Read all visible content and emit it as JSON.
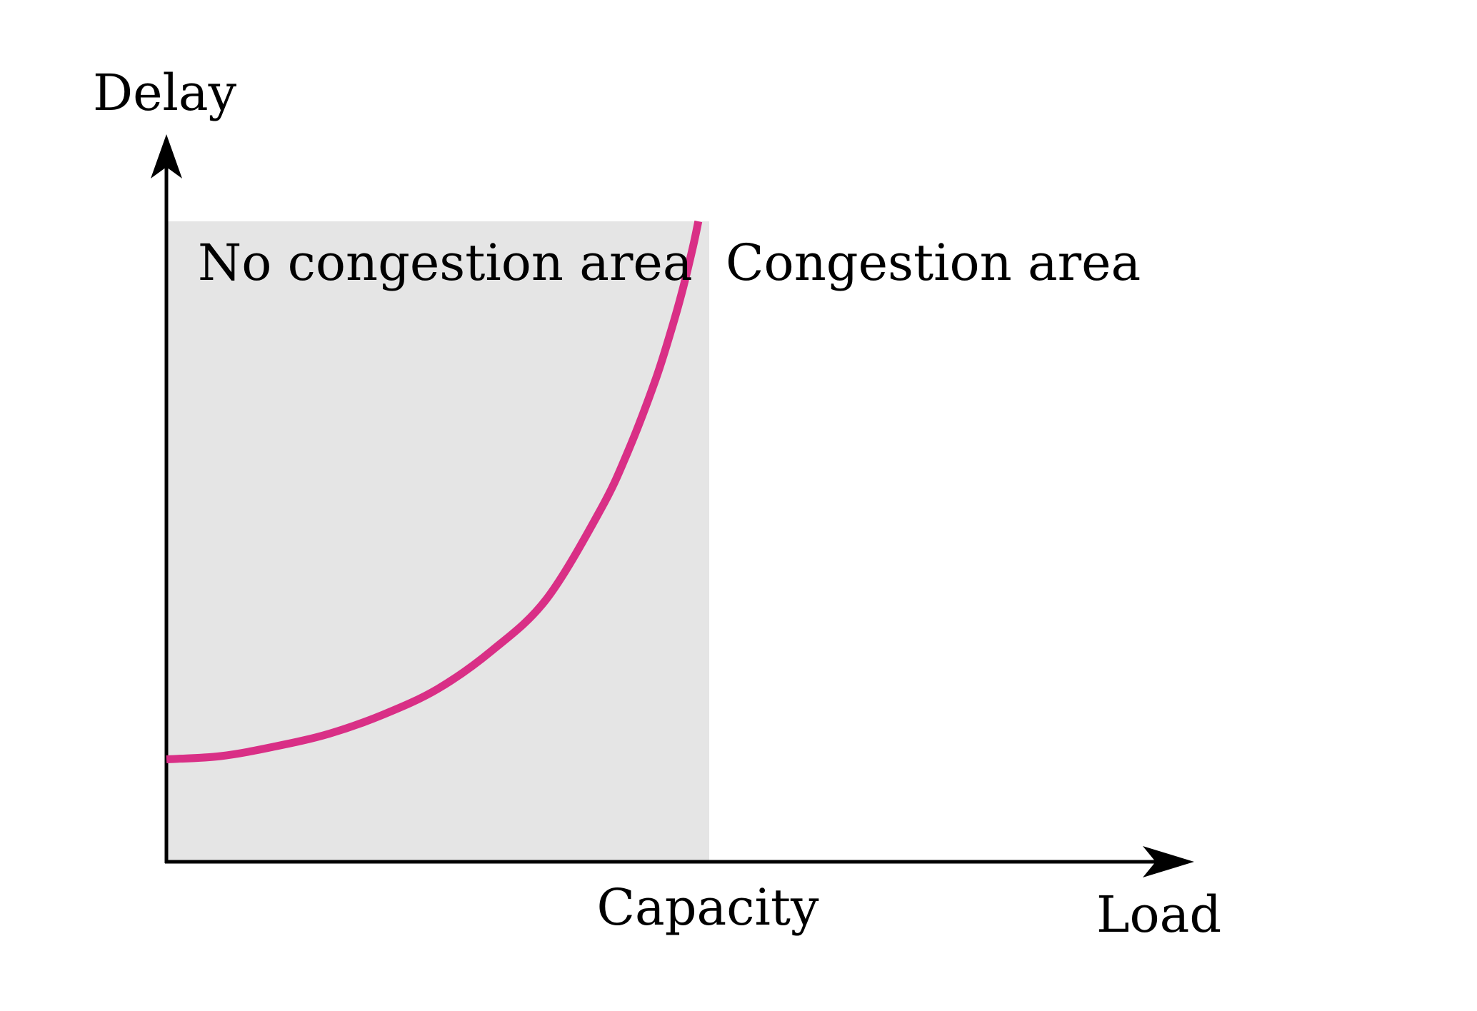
{
  "chart_data": {
    "type": "line",
    "title": "",
    "xlabel": "Load",
    "ylabel": "Delay",
    "x_axis_marker": {
      "label": "Capacity",
      "x": 1.0
    },
    "regions": [
      {
        "label": "No congestion area",
        "x_range": [
          0,
          1.0
        ],
        "color": "#e5e5e5"
      },
      {
        "label": "Congestion area",
        "x_range": [
          1.0,
          1.9
        ]
      }
    ],
    "series": [
      {
        "color": "#d92f86",
        "x": [
          0,
          0.1,
          0.2,
          0.3,
          0.4,
          0.5,
          0.6,
          0.7,
          0.8,
          0.85,
          0.9,
          0.93,
          0.95,
          0.97,
          0.98
        ],
        "y": [
          0.16,
          0.165,
          0.18,
          0.2,
          0.23,
          0.27,
          0.33,
          0.41,
          0.55,
          0.64,
          0.75,
          0.83,
          0.89,
          0.96,
          1.0
        ]
      }
    ],
    "xlim": [
      0,
      1.9
    ],
    "ylim": [
      0,
      1.0
    ],
    "grid": false,
    "ticks": false
  }
}
